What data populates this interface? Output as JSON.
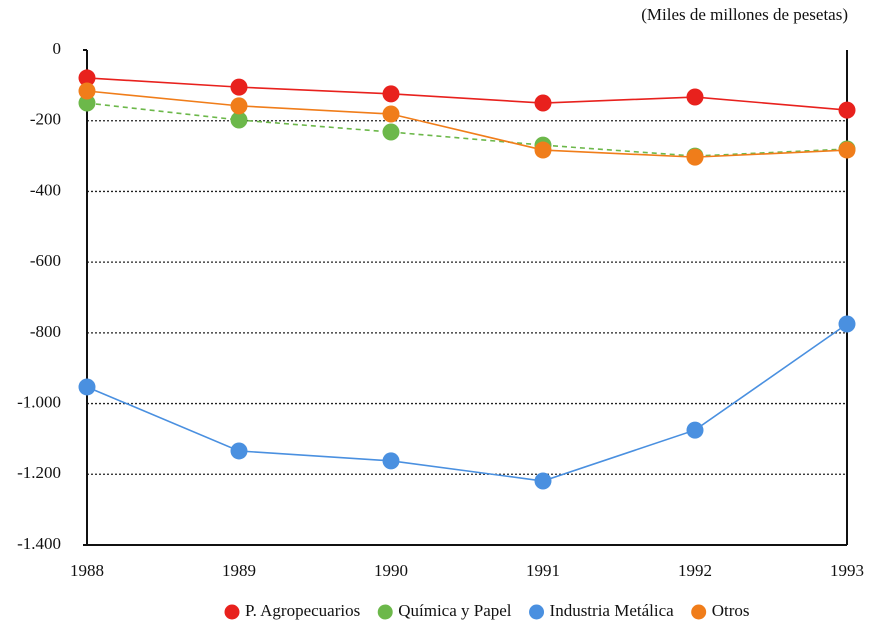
{
  "chart_data": {
    "type": "line",
    "subtitle": "(Miles de millones de pesetas)",
    "categories": [
      "1988",
      "1989",
      "1990",
      "1991",
      "1992",
      "1993"
    ],
    "series": [
      {
        "name": "P. Agropecuarios",
        "color": "#e8211d",
        "values": [
          -79,
          -105,
          -124,
          -150,
          -133,
          -170
        ]
      },
      {
        "name": "Química y Papel",
        "color": "#6cb84a",
        "line_style": "dashed",
        "values": [
          -150,
          -198,
          -232,
          -269,
          -300,
          -280
        ]
      },
      {
        "name": "Industria Metálica",
        "color": "#4a90e0",
        "values": [
          -953,
          -1134,
          -1162,
          -1219,
          -1075,
          -775
        ]
      },
      {
        "name": "Otros",
        "color": "#f07d1a",
        "values": [
          -116,
          -158,
          -181,
          -283,
          -303,
          -283
        ]
      }
    ],
    "ylim": [
      -1400,
      0
    ],
    "yticks": [
      0,
      -200,
      -400,
      -600,
      -800,
      {
        "value": -1000,
        "label": "-1.000"
      },
      {
        "value": -1200,
        "label": "-1.200"
      },
      {
        "value": -1400,
        "label": "-1.400"
      }
    ],
    "grid": true,
    "legend": "bottom"
  }
}
